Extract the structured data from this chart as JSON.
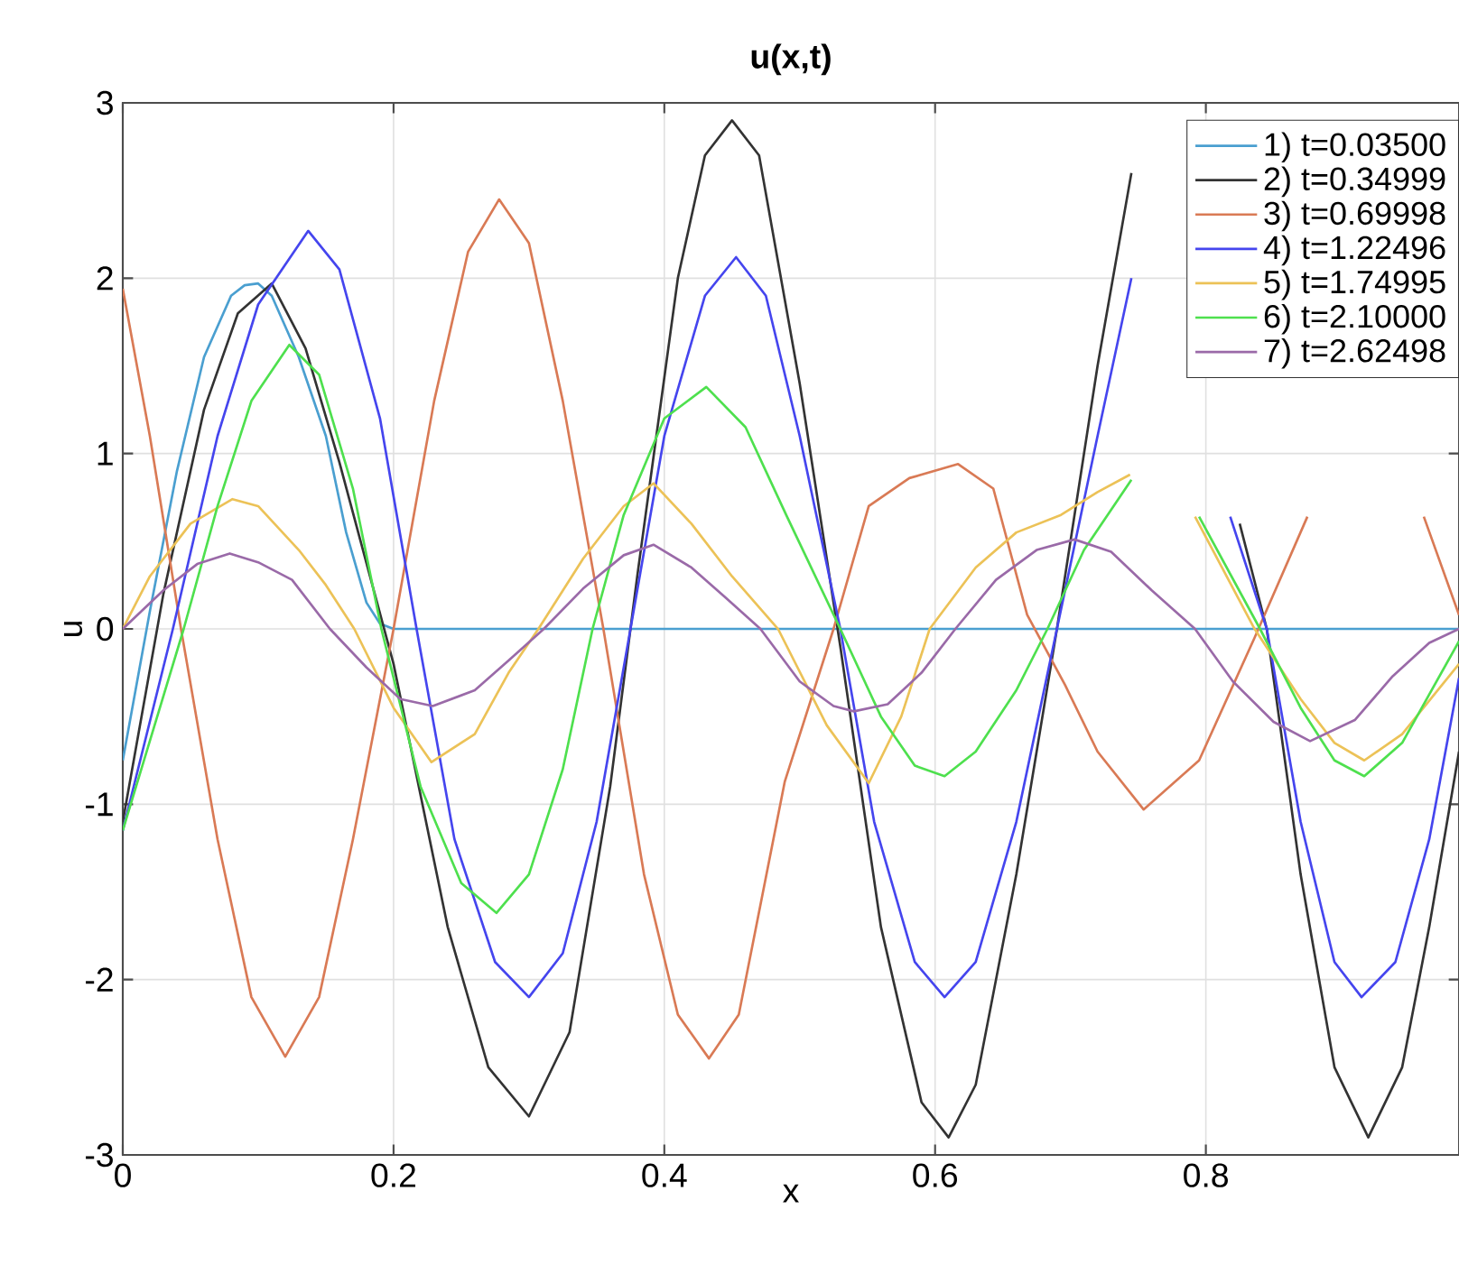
{
  "chart_data": {
    "type": "line",
    "title": "u(x,t)",
    "xlabel": "x",
    "ylabel": "u",
    "xlim": [
      0,
      0.987
    ],
    "xticks": [
      0,
      0.2,
      0.4,
      0.6,
      0.8
    ],
    "ylim": [
      -3,
      3
    ],
    "yticks": [
      -3,
      -2,
      -1,
      0,
      1,
      2,
      3
    ],
    "grid": true,
    "legend": "top right",
    "line_style": "solid",
    "marker": "none",
    "series": [
      {
        "name": "1) t=0.03500",
        "color": "#4a9fd0",
        "x": [
          0,
          0.02,
          0.04,
          0.06,
          0.08,
          0.09,
          0.1,
          0.11,
          0.13,
          0.15,
          0.165,
          0.18,
          0.19,
          0.2,
          0.987
        ],
        "values": [
          -0.75,
          0.1,
          0.9,
          1.55,
          1.9,
          1.96,
          1.97,
          1.9,
          1.55,
          1.1,
          0.55,
          0.15,
          0.03,
          0,
          0
        ]
      },
      {
        "name": "2) t=0.34999",
        "color": "#333333",
        "x": [
          0,
          0.03,
          0.06,
          0.085,
          0.11,
          0.135,
          0.16,
          0.2,
          0.24,
          0.27,
          0.3,
          0.33,
          0.36,
          0.38,
          0.41,
          0.43,
          0.45,
          0.47,
          0.5,
          0.53,
          0.56,
          0.59,
          0.61,
          0.63,
          0.66,
          0.69,
          0.72,
          0.745,
          0.78,
          0.825,
          0.845,
          0.87,
          0.895,
          0.92,
          0.945,
          0.965,
          0.987
        ],
        "values": [
          -1.1,
          0.2,
          1.25,
          1.8,
          1.97,
          1.6,
          0.95,
          -0.2,
          -1.7,
          -2.5,
          -2.78,
          -2.3,
          -0.9,
          0.3,
          2.0,
          2.7,
          2.9,
          2.7,
          1.4,
          -0.1,
          -1.7,
          -2.7,
          -2.9,
          -2.6,
          -1.4,
          0,
          1.5,
          2.6,
          null,
          0.6,
          0,
          -1.4,
          -2.5,
          -2.9,
          -2.5,
          -1.7,
          -0.7
        ]
      },
      {
        "name": "3) t=0.69998",
        "color": "#d97a55",
        "x": [
          0,
          0.02,
          0.043,
          0.07,
          0.095,
          0.12,
          0.145,
          0.17,
          0.2,
          0.23,
          0.255,
          0.278,
          0.3,
          0.325,
          0.355,
          0.385,
          0.41,
          0.433,
          0.455,
          0.489,
          0.525,
          0.551,
          0.581,
          0.617,
          0.643,
          0.668,
          0.696,
          0.72,
          0.754,
          0.795,
          0.836,
          0.875,
          0.92,
          0.961,
          0.987
        ],
        "values": [
          1.94,
          1.1,
          0,
          -1.2,
          -2.1,
          -2.44,
          -2.1,
          -1.2,
          0,
          1.3,
          2.15,
          2.45,
          2.2,
          1.3,
          0,
          -1.4,
          -2.2,
          -2.45,
          -2.2,
          -0.87,
          0,
          0.7,
          0.86,
          0.94,
          0.8,
          0.08,
          -0.32,
          -0.7,
          -1.03,
          -0.75,
          -0.05,
          0.64,
          null,
          0.64,
          0.08
        ]
      },
      {
        "name": "4) t=1.22496",
        "color": "#4545ee",
        "x": [
          0,
          0.037,
          0.07,
          0.1,
          0.137,
          0.16,
          0.19,
          0.217,
          0.245,
          0.275,
          0.3,
          0.325,
          0.35,
          0.375,
          0.4,
          0.43,
          0.453,
          0.475,
          0.5,
          0.53,
          0.555,
          0.585,
          0.607,
          0.63,
          0.66,
          0.69,
          0.72,
          0.745,
          0.78,
          0.818,
          0.845,
          0.87,
          0.895,
          0.915,
          0.94,
          0.965,
          0.987
        ],
        "values": [
          -1.15,
          0,
          1.1,
          1.85,
          2.27,
          2.05,
          1.2,
          0,
          -1.2,
          -1.9,
          -2.1,
          -1.85,
          -1.1,
          0,
          1.1,
          1.9,
          2.12,
          1.9,
          1.1,
          0,
          -1.1,
          -1.9,
          -2.1,
          -1.9,
          -1.1,
          0,
          1.1,
          2.0,
          null,
          0.64,
          0,
          -1.1,
          -1.9,
          -2.1,
          -1.9,
          -1.2,
          -0.28
        ]
      },
      {
        "name": "5) t=1.74995",
        "color": "#ecc257",
        "x": [
          0,
          0.02,
          0.05,
          0.081,
          0.1,
          0.13,
          0.15,
          0.171,
          0.2,
          0.228,
          0.26,
          0.285,
          0.307,
          0.34,
          0.37,
          0.392,
          0.42,
          0.45,
          0.484,
          0.52,
          0.551,
          0.575,
          0.596,
          0.63,
          0.66,
          0.693,
          0.72,
          0.744,
          0.77,
          0.792,
          0.836,
          0.87,
          0.895,
          0.917,
          0.945,
          0.987
        ],
        "values": [
          0,
          0.3,
          0.6,
          0.74,
          0.7,
          0.45,
          0.25,
          0,
          -0.45,
          -0.76,
          -0.6,
          -0.25,
          0,
          0.4,
          0.7,
          0.83,
          0.6,
          0.3,
          0,
          -0.55,
          -0.88,
          -0.5,
          0,
          0.35,
          0.55,
          0.65,
          0.78,
          0.88,
          null,
          0.64,
          0,
          -0.4,
          -0.65,
          -0.75,
          -0.6,
          -0.2
        ]
      },
      {
        "name": "6) t=2.10000",
        "color": "#4ee04e",
        "x": [
          0,
          0.045,
          0.07,
          0.095,
          0.123,
          0.145,
          0.17,
          0.191,
          0.22,
          0.25,
          0.276,
          0.3,
          0.325,
          0.347,
          0.37,
          0.4,
          0.431,
          0.46,
          0.49,
          0.53,
          0.56,
          0.585,
          0.607,
          0.63,
          0.66,
          0.683,
          0.71,
          0.745,
          0.77,
          0.795,
          0.84,
          0.87,
          0.895,
          0.917,
          0.945,
          0.987
        ],
        "values": [
          -1.15,
          0,
          0.7,
          1.3,
          1.62,
          1.45,
          0.8,
          0,
          -0.9,
          -1.45,
          -1.62,
          -1.4,
          -0.8,
          0,
          0.65,
          1.2,
          1.38,
          1.15,
          0.65,
          0,
          -0.5,
          -0.78,
          -0.84,
          -0.7,
          -0.35,
          0,
          0.45,
          0.85,
          null,
          0.64,
          0,
          -0.45,
          -0.75,
          -0.84,
          -0.65,
          -0.07
        ]
      },
      {
        "name": "7) t=2.62498",
        "color": "#9a6aa8",
        "x": [
          0,
          0.03,
          0.055,
          0.079,
          0.1,
          0.125,
          0.153,
          0.18,
          0.205,
          0.229,
          0.26,
          0.285,
          0.311,
          0.34,
          0.37,
          0.392,
          0.42,
          0.445,
          0.471,
          0.5,
          0.525,
          0.54,
          0.565,
          0.59,
          0.615,
          0.645,
          0.675,
          0.703,
          0.73,
          0.76,
          0.792,
          0.82,
          0.85,
          0.877,
          0.91,
          0.938,
          0.965,
          0.987
        ],
        "values": [
          0,
          0.22,
          0.37,
          0.43,
          0.38,
          0.28,
          0,
          -0.22,
          -0.4,
          -0.44,
          -0.35,
          -0.18,
          0,
          0.23,
          0.42,
          0.48,
          0.35,
          0.18,
          0,
          -0.3,
          -0.44,
          -0.47,
          -0.43,
          -0.25,
          0,
          0.28,
          0.45,
          0.51,
          0.44,
          0.22,
          0,
          -0.3,
          -0.53,
          -0.64,
          -0.52,
          -0.27,
          -0.08,
          0
        ]
      }
    ]
  }
}
